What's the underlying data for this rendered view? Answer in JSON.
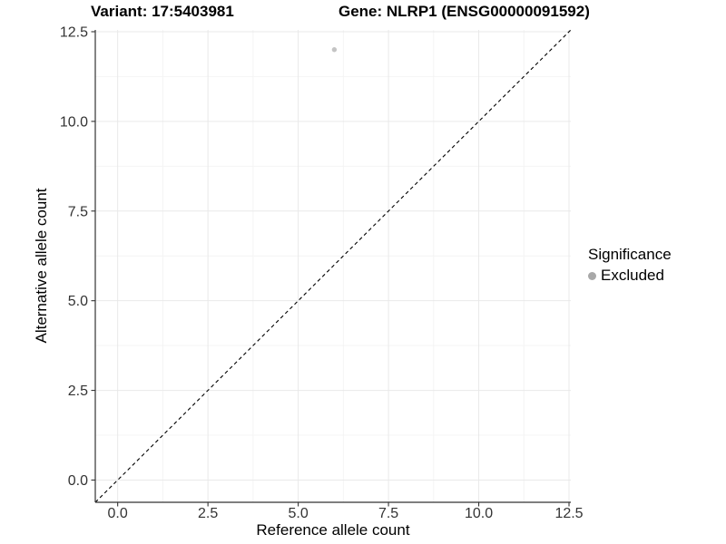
{
  "titles": {
    "variant": "Variant: 17:5403981",
    "gene": "Gene: NLRP1 (ENSG00000091592)"
  },
  "chart_data": {
    "type": "scatter",
    "xlabel": "Reference allele count",
    "ylabel": "Alternative allele count",
    "xlim": [
      -0.62,
      12.55
    ],
    "ylim": [
      -0.62,
      12.55
    ],
    "x_ticks": [
      0.0,
      2.5,
      5.0,
      7.5,
      10.0,
      12.5
    ],
    "y_ticks": [
      0.0,
      2.5,
      5.0,
      7.5,
      10.0,
      12.5
    ],
    "tick_decimals": 1,
    "grid": true,
    "minor_grid": true,
    "points": [
      {
        "x": 6,
        "y": 12,
        "significance": "Excluded"
      }
    ],
    "reference_line": {
      "type": "identity",
      "slope": 1,
      "intercept": 0,
      "style": "dashed"
    },
    "legend": {
      "title": "Significance",
      "position": "right",
      "items": [
        {
          "label": "Excluded",
          "color": "#a8a8a8"
        }
      ]
    },
    "colors": {
      "point": "#c4c4c4",
      "legend_point": "#a8a8a8",
      "grid_major": "#e9e9e9",
      "grid_minor": "#f4f4f4",
      "axis_line": "#333333",
      "tick_label": "#333333",
      "reference_line": "#000000"
    }
  }
}
